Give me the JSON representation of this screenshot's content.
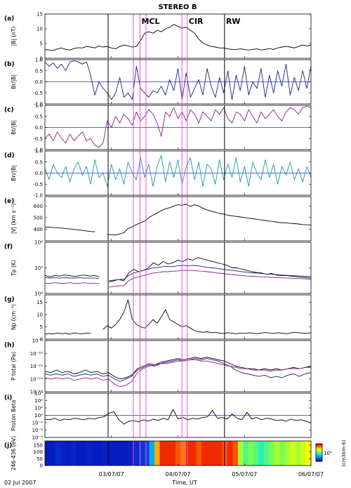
{
  "figure": {
    "title": "STEREO B",
    "xaxis_label": "Time, UT",
    "start_label": "02 Jul 2007",
    "x_ticks": [
      "03/07/07",
      "04/07/07",
      "05/07/07",
      "06/07/07"
    ],
    "events": [
      {
        "label": "MCL",
        "day": 1.43,
        "color": "#ff44dd"
      },
      {
        "label": "CIR",
        "day": 2.14,
        "color": "#ff44dd"
      },
      {
        "label": "RW",
        "day": 2.7,
        "color": "#000000"
      }
    ],
    "extra_lines": [
      {
        "day": 0.95,
        "color": "#000000"
      },
      {
        "day": 1.33,
        "color": "#ff44dd"
      },
      {
        "day": 1.52,
        "color": "#ff44dd"
      },
      {
        "day": 2.06,
        "color": "#ff44dd"
      }
    ],
    "colors": {
      "black": "#000000",
      "blue": "#1a237e",
      "purple": "#8b1a8b",
      "teal": "#1a9aa0",
      "ref": "#2233cc",
      "event": "#ff44dd"
    }
  },
  "chart_data": [
    {
      "type": "line",
      "panel": "(a)",
      "ylabel": "|B| (nT)",
      "ylim": [
        0,
        15
      ],
      "yticks": [
        "0",
        "5",
        "10",
        "15"
      ],
      "series": [
        {
          "color": "black",
          "values": [
            3.0,
            2.8,
            2.6,
            3.2,
            3.5,
            3.0,
            2.8,
            3.3,
            3.6,
            3.5,
            4.0,
            3.8,
            3.5,
            4.2,
            3.8,
            4.0,
            3.5,
            3.2,
            4.0,
            4.5,
            4.2,
            3.8,
            4.0,
            6.0,
            8.5,
            9.0,
            8.5,
            9.5,
            9.0,
            10.0,
            10.5,
            11.5,
            10.8,
            10.2,
            10.5,
            9.5,
            8.5,
            6.5,
            5.2,
            4.5,
            4.0,
            3.8,
            3.5,
            3.5,
            3.2,
            3.0,
            3.0,
            3.2,
            3.0,
            2.8,
            3.0,
            3.2,
            2.8,
            3.0,
            3.3,
            3.0,
            3.5,
            3.8,
            4.0,
            3.8,
            3.5,
            4.0,
            4.5,
            4.2,
            4.5
          ]
        }
      ]
    },
    {
      "type": "line",
      "panel": "(b)",
      "ylabel": "Br/|B|",
      "ylim": [
        -1.0,
        1.0
      ],
      "yticks": [
        "-1.0",
        "-0.5",
        "0.0",
        "0.5",
        "1.0"
      ],
      "ref": 0.0,
      "series": [
        {
          "color": "blue",
          "values": [
            0.9,
            0.7,
            0.85,
            0.6,
            0.8,
            0.5,
            0.9,
            0.95,
            0.9,
            0.8,
            0.9,
            0.3,
            -0.6,
            0.0,
            -0.3,
            -0.5,
            -0.8,
            -0.5,
            0.2,
            -0.7,
            -0.5,
            -0.8,
            0.7,
            -0.3,
            -0.5,
            -0.7,
            -0.4,
            -0.5,
            -0.2,
            -0.6,
            0.1,
            -0.4,
            0.6,
            -0.8,
            0.4,
            -0.7,
            -0.3,
            0.1,
            -0.6,
            0.6,
            -0.2,
            -0.7,
            0.2,
            -0.5,
            0.5,
            -0.8,
            0.3,
            -0.4,
            0.7,
            -0.6,
            0.0,
            -0.3,
            0.6,
            -0.7,
            0.3,
            -0.5,
            0.5,
            -0.2,
            0.8,
            -0.6,
            0.2,
            -0.4,
            0.5,
            -0.3,
            0.7
          ]
        }
      ]
    },
    {
      "type": "line",
      "panel": "(c)",
      "ylabel": "Bt/|B|",
      "ylim": [
        -1.0,
        1.0
      ],
      "yticks": [
        "-1.0",
        "-0.5",
        "0.0",
        "0.5",
        "1.0"
      ],
      "ref": 0.0,
      "series": [
        {
          "color": "purple",
          "values": [
            -0.5,
            -0.3,
            -0.6,
            -0.2,
            -0.5,
            -0.7,
            -0.3,
            -0.6,
            -0.4,
            -0.2,
            -0.6,
            -0.5,
            -0.8,
            -0.9,
            -0.7,
            0.3,
            0.0,
            0.5,
            0.2,
            0.6,
            0.4,
            0.1,
            0.7,
            0.3,
            0.5,
            0.8,
            0.6,
            0.2,
            -0.4,
            0.7,
            0.5,
            0.9,
            0.4,
            0.7,
            0.3,
            0.8,
            0.6,
            0.2,
            0.7,
            0.5,
            0.3,
            0.8,
            0.6,
            0.9,
            0.4,
            0.2,
            0.7,
            0.6,
            0.3,
            0.8,
            0.5,
            0.2,
            0.7,
            0.4,
            0.6,
            0.8,
            0.5,
            0.3,
            0.7,
            0.9,
            0.8,
            0.6,
            0.9,
            0.95,
            0.9
          ]
        }
      ]
    },
    {
      "type": "line",
      "panel": "(d)",
      "ylabel": "Bn/|B|",
      "ylim": [
        -1.0,
        1.0
      ],
      "yticks": [
        "-1.0",
        "-0.5",
        "0.0",
        "0.5",
        "1.0"
      ],
      "ref": 0.0,
      "series": [
        {
          "color": "teal",
          "values": [
            0.2,
            -0.3,
            0.4,
            0.0,
            -0.2,
            0.3,
            -0.4,
            0.2,
            0.5,
            -0.1,
            0.3,
            -0.5,
            0.6,
            -0.2,
            0.0,
            -0.6,
            0.4,
            -0.3,
            0.2,
            -0.5,
            0.5,
            0.0,
            -0.3,
            0.7,
            -0.2,
            0.4,
            -0.6,
            0.3,
            0.8,
            -0.4,
            0.5,
            -0.2,
            0.6,
            -0.5,
            0.3,
            0.7,
            -0.3,
            0.5,
            -0.6,
            0.4,
            0.2,
            -0.5,
            0.6,
            -0.3,
            0.4,
            -0.2,
            0.7,
            -0.4,
            0.3,
            -0.6,
            0.5,
            0.0,
            -0.3,
            0.6,
            -0.2,
            0.4,
            -0.5,
            0.3,
            -0.1,
            0.5,
            -0.3,
            0.2,
            -0.4,
            0.3,
            -0.2
          ]
        }
      ]
    },
    {
      "type": "line",
      "panel": "(e)",
      "ylabel": "|V| (km s⁻¹)",
      "ylim": [
        300,
        680
      ],
      "yticks": [
        "400",
        "500",
        "600"
      ],
      "series": [
        {
          "color": "black",
          "values": [
            420,
            418,
            415,
            412,
            410,
            405,
            402,
            398,
            395,
            390,
            385,
            380,
            378,
            null,
            null,
            355,
            352,
            350,
            360,
            370,
            405,
            420,
            440,
            455,
            470,
            500,
            520,
            540,
            560,
            575,
            585,
            600,
            610,
            605,
            615,
            595,
            610,
            600,
            580,
            565,
            555,
            545,
            535,
            530,
            520,
            515,
            510,
            505,
            500,
            495,
            490,
            485,
            480,
            475,
            470,
            465,
            460,
            455,
            455,
            450,
            448,
            445,
            440,
            438,
            435
          ]
        }
      ]
    },
    {
      "type": "line",
      "panel": "(f)",
      "ylabel": "Tp (K)",
      "scale": "log",
      "ylim": [
        4,
        6
      ],
      "yticks": [
        "10⁴",
        "10⁵",
        "10⁶"
      ],
      "series": [
        {
          "color": "black",
          "values": [
            4.7,
            4.65,
            4.7,
            4.68,
            4.72,
            4.7,
            4.66,
            4.7,
            4.72,
            4.68,
            4.7,
            4.66,
            null,
            4.45,
            4.5,
            4.55,
            4.5,
            4.8,
            4.95,
            4.85,
            4.9,
            5.0,
            5.2,
            5.1,
            5.25,
            5.15,
            5.2,
            5.3,
            5.25,
            5.35,
            5.3,
            5.4,
            5.35,
            5.3,
            5.25,
            5.2,
            5.15,
            5.1,
            5.0,
            5.0,
            4.95,
            4.9,
            4.85,
            4.82,
            4.8,
            4.75,
            4.78,
            4.72,
            4.7,
            4.7,
            4.68,
            4.66,
            4.64,
            4.62,
            4.6
          ]
        },
        {
          "color": "blue",
          "values": [
            4.62,
            4.6,
            4.62,
            4.6,
            4.62,
            4.6,
            4.6,
            4.62,
            4.6,
            4.6,
            4.6,
            4.58,
            null,
            4.5,
            4.52,
            4.55,
            4.55,
            4.7,
            4.8,
            4.85,
            4.9,
            4.95,
            5.0,
            5.02,
            5.05,
            5.05,
            5.05,
            5.08,
            5.1,
            5.08,
            5.1,
            5.08,
            5.05,
            5.02,
            5.0,
            4.98,
            4.95,
            4.92,
            4.9,
            4.88,
            4.85,
            4.83,
            4.8,
            4.8,
            4.78,
            4.76,
            4.75,
            4.74,
            4.72,
            4.71,
            4.7,
            4.69,
            4.68,
            4.67,
            4.66
          ]
        },
        {
          "color": "purple",
          "values": [
            4.4,
            4.4,
            4.42,
            4.4,
            4.4,
            4.42,
            4.4,
            4.4,
            4.42,
            4.4,
            4.4,
            4.38,
            null,
            4.25,
            4.28,
            4.3,
            4.3,
            4.5,
            4.6,
            4.65,
            4.7,
            4.75,
            4.8,
            4.82,
            4.85,
            4.85,
            4.87,
            4.88,
            4.9,
            4.9,
            4.9,
            4.88,
            4.87,
            4.85,
            4.83,
            4.8,
            4.78,
            4.76,
            4.74,
            4.72,
            4.7,
            4.68,
            4.67,
            4.66,
            4.65,
            4.64,
            4.63,
            4.62,
            4.61,
            4.6,
            4.6,
            4.59,
            4.58,
            4.57,
            4.56
          ]
        }
      ]
    },
    {
      "type": "line",
      "panel": "(g)",
      "ylabel": "Np (cm⁻³)",
      "ylim": [
        0,
        18
      ],
      "yticks": [
        "0",
        "5",
        "10",
        "15"
      ],
      "series": [
        {
          "color": "black",
          "values": [
            2.0,
            2.3,
            2.1,
            2.5,
            2.2,
            2.4,
            2.0,
            2.6,
            2.3,
            2.1,
            2.5,
            2.3,
            null,
            null,
            4.0,
            5.5,
            4.5,
            6.0,
            8.0,
            11.0,
            16.0,
            8.0,
            6.0,
            5.0,
            4.5,
            6.0,
            8.0,
            6.5,
            9.0,
            12.0,
            8.0,
            7.0,
            6.0,
            5.0,
            5.5,
            4.5,
            3.5,
            3.0,
            2.8,
            3.0,
            2.6,
            2.8,
            2.5,
            2.3,
            2.6,
            2.4,
            2.2,
            2.5,
            2.3,
            2.6,
            2.4,
            2.2,
            2.5,
            2.7,
            2.5,
            2.3,
            2.6,
            2.4,
            2.2,
            2.5,
            2.8,
            2.6,
            2.5,
            2.4,
            2.6
          ]
        }
      ]
    },
    {
      "type": "line",
      "panel": "(h)",
      "ylabel": "P total (Pa)",
      "scale": "log",
      "ylim": [
        -13,
        -9
      ],
      "yticks": [
        "10⁻¹³",
        "10⁻¹²",
        "10⁻¹¹",
        "10⁻¹⁰",
        "10⁻⁹"
      ],
      "series": [
        {
          "color": "black",
          "values": [
            -11.4,
            -11.5,
            -11.3,
            -11.5,
            -11.4,
            -11.6,
            -11.5,
            -11.3,
            -11.5,
            -11.4,
            -11.6,
            -11.5,
            -11.8,
            -12.0,
            -11.9,
            -11.7,
            -11.2,
            -11.0,
            -10.8,
            -10.9,
            -10.7,
            -10.6,
            -10.5,
            -10.4,
            -10.5,
            -10.4,
            -10.3,
            -10.4,
            -10.3,
            -10.4,
            -10.5,
            -10.6,
            -10.8,
            -11.0,
            -11.1,
            -11.2,
            -11.2,
            -11.3,
            -11.2,
            -11.3,
            -11.2,
            -11.3,
            -11.2,
            -11.1,
            -11.2,
            -11.1,
            -11.0
          ]
        },
        {
          "color": "blue",
          "values": [
            -11.6,
            -11.7,
            -11.6,
            -11.7,
            -11.6,
            -11.8,
            -11.7,
            -11.6,
            -11.7,
            -11.6,
            -11.8,
            -11.7,
            -12.0,
            -12.2,
            -12.0,
            -11.8,
            -11.3,
            -11.1,
            -10.9,
            -11.0,
            -10.8,
            -10.7,
            -10.6,
            -10.5,
            -10.6,
            -10.5,
            -10.4,
            -10.5,
            -10.4,
            -10.5,
            -10.6,
            -10.8,
            -11.0,
            -11.3,
            -11.5,
            -11.6,
            -11.7,
            -11.8,
            -11.7,
            -11.9,
            -11.8,
            -11.9,
            -11.7,
            -11.6,
            -11.8,
            -11.6,
            -11.5
          ]
        },
        {
          "color": "purple",
          "values": [
            -11.9,
            -12.0,
            -11.9,
            -12.0,
            -11.9,
            -12.1,
            -12.0,
            -11.9,
            -12.0,
            -11.9,
            -12.1,
            -12.0,
            -12.4,
            -12.6,
            -12.5,
            -12.2,
            -11.5,
            -11.2,
            -11.0,
            -10.9,
            -10.8,
            -10.8,
            -10.7,
            -10.6,
            -10.6,
            -10.5,
            -10.5,
            -10.6,
            -10.6,
            -10.7,
            -10.8,
            -10.9,
            -11.0,
            -11.1,
            -11.2,
            -11.2,
            -11.3,
            -11.3,
            -11.3,
            -11.4,
            -11.3,
            -11.3,
            -11.2,
            -11.2,
            -11.2,
            -11.1,
            -11.1
          ]
        }
      ]
    },
    {
      "type": "line",
      "panel": "(i)",
      "ylabel": "Proton Beta",
      "scale": "log",
      "ylim": [
        -3,
        3
      ],
      "yticks": [
        "10⁻³",
        "10⁻²",
        "10⁻¹",
        "10⁰",
        "10¹",
        "10²",
        "10³"
      ],
      "ref": 0,
      "series": [
        {
          "color": "black",
          "values": [
            -0.5,
            -0.6,
            -0.4,
            -0.7,
            -0.5,
            -0.6,
            -0.4,
            -0.5,
            -0.6,
            -0.4,
            -0.5,
            -0.3,
            -0.2,
            0.3,
            0.5,
            -0.6,
            -1.2,
            -0.8,
            -0.7,
            -0.9,
            -0.6,
            -0.8,
            -0.5,
            -0.7,
            -0.4,
            -0.6,
            0.8,
            -0.5,
            -0.3,
            -0.6,
            -0.4,
            -0.5,
            -0.3,
            -0.2,
            0.7,
            -0.4,
            -0.3,
            -0.5,
            0.2,
            -0.4,
            -0.6,
            0.4,
            -0.5,
            -0.3,
            -0.6,
            -0.4,
            -0.5,
            -0.7,
            -0.6,
            -0.8,
            -0.5,
            -0.7,
            -0.6,
            -0.8,
            -1.0
          ]
        }
      ]
    },
    {
      "type": "heatmap",
      "panel": "(j)",
      "ylabel": "246-436 (eV)",
      "ylim": [
        0,
        180
      ],
      "yticks": [
        "0",
        "50",
        "100",
        "150"
      ],
      "colorbar_label": "(cm3km-6)",
      "colorbar_tick": "10¹",
      "levels": [
        0.05,
        0.05,
        0.08,
        0.06,
        0.05,
        0.07,
        0.05,
        0.05,
        0.06,
        0.05,
        0.05,
        0.06,
        0.05,
        0.05,
        0.05,
        0.05,
        0.06,
        0.08,
        0.1,
        0.12,
        0.3,
        0.8,
        0.95,
        0.95,
        0.95,
        0.9,
        0.85,
        0.95,
        0.95,
        0.9,
        0.95,
        0.95,
        0.95,
        0.95,
        0.9,
        0.95,
        0.9,
        0.6,
        0.5,
        0.55,
        0.5,
        0.45,
        0.5,
        0.55,
        0.6,
        0.55,
        0.6,
        0.65,
        0.6,
        0.65,
        0.7
      ]
    }
  ]
}
